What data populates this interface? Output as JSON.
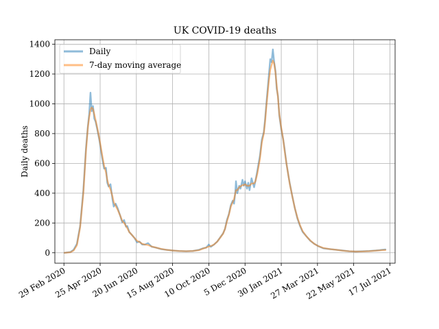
{
  "chart_data": {
    "type": "line",
    "title": "UK COVID-19 deaths",
    "xlabel": "",
    "ylabel": "Daily deaths",
    "x_range": [
      "2020-02-15",
      "2021-07-25"
    ],
    "ylim": [
      -70,
      1430
    ],
    "y_ticks": [
      0,
      200,
      400,
      600,
      800,
      1000,
      1200,
      1400
    ],
    "x_ticks": [
      {
        "date": "2020-02-29",
        "label": "29 Feb 2020"
      },
      {
        "date": "2020-04-25",
        "label": "25 Apr 2020"
      },
      {
        "date": "2020-06-20",
        "label": "20 Jun 2020"
      },
      {
        "date": "2020-08-15",
        "label": "15 Aug 2020"
      },
      {
        "date": "2020-10-10",
        "label": "10 Oct 2020"
      },
      {
        "date": "2020-12-05",
        "label": "5 Dec 2020"
      },
      {
        "date": "2021-01-30",
        "label": "30 Jan 2021"
      },
      {
        "date": "2021-03-27",
        "label": "27 Mar 2021"
      },
      {
        "date": "2021-05-22",
        "label": "22 May 2021"
      },
      {
        "date": "2021-07-17",
        "label": "17 Jul 2021"
      }
    ],
    "grid": true,
    "legend_position": "top-left",
    "series": [
      {
        "name": "Daily",
        "color": "#1f77b4",
        "points": [
          [
            "2020-03-01",
            0
          ],
          [
            "2020-03-10",
            5
          ],
          [
            "2020-03-15",
            20
          ],
          [
            "2020-03-20",
            60
          ],
          [
            "2020-03-25",
            180
          ],
          [
            "2020-03-30",
            420
          ],
          [
            "2020-04-03",
            700
          ],
          [
            "2020-04-06",
            850
          ],
          [
            "2020-04-08",
            930
          ],
          [
            "2020-04-10",
            1075
          ],
          [
            "2020-04-12",
            950
          ],
          [
            "2020-04-14",
            985
          ],
          [
            "2020-04-16",
            900
          ],
          [
            "2020-04-18",
            880
          ],
          [
            "2020-04-21",
            820
          ],
          [
            "2020-04-24",
            750
          ],
          [
            "2020-04-28",
            640
          ],
          [
            "2020-05-01",
            565
          ],
          [
            "2020-05-04",
            570
          ],
          [
            "2020-05-06",
            470
          ],
          [
            "2020-05-08",
            445
          ],
          [
            "2020-05-11",
            460
          ],
          [
            "2020-05-14",
            360
          ],
          [
            "2020-05-16",
            310
          ],
          [
            "2020-05-19",
            330
          ],
          [
            "2020-05-22",
            300
          ],
          [
            "2020-05-26",
            250
          ],
          [
            "2020-05-29",
            205
          ],
          [
            "2020-06-01",
            220
          ],
          [
            "2020-06-04",
            175
          ],
          [
            "2020-06-06",
            180
          ],
          [
            "2020-06-09",
            140
          ],
          [
            "2020-06-13",
            120
          ],
          [
            "2020-06-17",
            100
          ],
          [
            "2020-06-21",
            70
          ],
          [
            "2020-06-25",
            75
          ],
          [
            "2020-06-29",
            55
          ],
          [
            "2020-07-03",
            55
          ],
          [
            "2020-07-08",
            65
          ],
          [
            "2020-07-14",
            40
          ],
          [
            "2020-07-20",
            35
          ],
          [
            "2020-07-28",
            25
          ],
          [
            "2020-08-05",
            20
          ],
          [
            "2020-08-15",
            15
          ],
          [
            "2020-08-25",
            12
          ],
          [
            "2020-09-05",
            10
          ],
          [
            "2020-09-15",
            12
          ],
          [
            "2020-09-25",
            20
          ],
          [
            "2020-10-01",
            30
          ],
          [
            "2020-10-06",
            35
          ],
          [
            "2020-10-10",
            55
          ],
          [
            "2020-10-13",
            40
          ],
          [
            "2020-10-18",
            55
          ],
          [
            "2020-10-23",
            75
          ],
          [
            "2020-10-27",
            100
          ],
          [
            "2020-11-01",
            130
          ],
          [
            "2020-11-04",
            160
          ],
          [
            "2020-11-07",
            220
          ],
          [
            "2020-11-10",
            260
          ],
          [
            "2020-11-13",
            320
          ],
          [
            "2020-11-16",
            350
          ],
          [
            "2020-11-18",
            330
          ],
          [
            "2020-11-20",
            410
          ],
          [
            "2020-11-21",
            480
          ],
          [
            "2020-11-23",
            400
          ],
          [
            "2020-11-26",
            450
          ],
          [
            "2020-11-28",
            430
          ],
          [
            "2020-12-01",
            490
          ],
          [
            "2020-12-03",
            450
          ],
          [
            "2020-12-05",
            480
          ],
          [
            "2020-12-08",
            430
          ],
          [
            "2020-12-10",
            470
          ],
          [
            "2020-12-12",
            420
          ],
          [
            "2020-12-15",
            500
          ],
          [
            "2020-12-17",
            470
          ],
          [
            "2020-12-19",
            440
          ],
          [
            "2020-12-21",
            480
          ],
          [
            "2020-12-24",
            550
          ],
          [
            "2020-12-28",
            650
          ],
          [
            "2020-12-31",
            760
          ],
          [
            "2021-01-03",
            810
          ],
          [
            "2021-01-05",
            900
          ],
          [
            "2021-01-07",
            1000
          ],
          [
            "2021-01-09",
            1100
          ],
          [
            "2021-01-11",
            1200
          ],
          [
            "2021-01-13",
            1300
          ],
          [
            "2021-01-15",
            1280
          ],
          [
            "2021-01-17",
            1365
          ],
          [
            "2021-01-19",
            1280
          ],
          [
            "2021-01-21",
            1220
          ],
          [
            "2021-01-23",
            1100
          ],
          [
            "2021-01-25",
            1050
          ],
          [
            "2021-01-27",
            920
          ],
          [
            "2021-01-30",
            830
          ],
          [
            "2021-02-02",
            760
          ],
          [
            "2021-02-04",
            700
          ],
          [
            "2021-02-07",
            600
          ],
          [
            "2021-02-10",
            520
          ],
          [
            "2021-02-12",
            470
          ],
          [
            "2021-02-16",
            380
          ],
          [
            "2021-02-20",
            300
          ],
          [
            "2021-02-24",
            230
          ],
          [
            "2021-02-28",
            180
          ],
          [
            "2021-03-04",
            140
          ],
          [
            "2021-03-10",
            110
          ],
          [
            "2021-03-16",
            80
          ],
          [
            "2021-03-22",
            60
          ],
          [
            "2021-03-28",
            45
          ],
          [
            "2021-04-05",
            30
          ],
          [
            "2021-04-15",
            25
          ],
          [
            "2021-04-25",
            20
          ],
          [
            "2021-05-05",
            15
          ],
          [
            "2021-05-15",
            10
          ],
          [
            "2021-05-25",
            8
          ],
          [
            "2021-06-05",
            10
          ],
          [
            "2021-06-15",
            12
          ],
          [
            "2021-06-25",
            15
          ],
          [
            "2021-07-01",
            18
          ],
          [
            "2021-07-05",
            20
          ],
          [
            "2021-07-10",
            22
          ]
        ]
      },
      {
        "name": "7-day moving average",
        "color": "#ff7f0e",
        "points": [
          [
            "2020-03-01",
            0
          ],
          [
            "2020-03-10",
            3
          ],
          [
            "2020-03-15",
            15
          ],
          [
            "2020-03-20",
            50
          ],
          [
            "2020-03-25",
            170
          ],
          [
            "2020-03-30",
            400
          ],
          [
            "2020-04-03",
            680
          ],
          [
            "2020-04-06",
            840
          ],
          [
            "2020-04-08",
            910
          ],
          [
            "2020-04-10",
            960
          ],
          [
            "2020-04-12",
            975
          ],
          [
            "2020-04-14",
            965
          ],
          [
            "2020-04-16",
            930
          ],
          [
            "2020-04-18",
            890
          ],
          [
            "2020-04-21",
            830
          ],
          [
            "2020-04-24",
            760
          ],
          [
            "2020-04-28",
            660
          ],
          [
            "2020-05-01",
            585
          ],
          [
            "2020-05-04",
            540
          ],
          [
            "2020-05-06",
            490
          ],
          [
            "2020-05-08",
            455
          ],
          [
            "2020-05-11",
            425
          ],
          [
            "2020-05-14",
            380
          ],
          [
            "2020-05-16",
            340
          ],
          [
            "2020-05-19",
            315
          ],
          [
            "2020-05-22",
            290
          ],
          [
            "2020-05-26",
            250
          ],
          [
            "2020-05-29",
            215
          ],
          [
            "2020-06-01",
            200
          ],
          [
            "2020-06-04",
            180
          ],
          [
            "2020-06-06",
            165
          ],
          [
            "2020-06-09",
            140
          ],
          [
            "2020-06-13",
            120
          ],
          [
            "2020-06-17",
            100
          ],
          [
            "2020-06-21",
            80
          ],
          [
            "2020-06-25",
            72
          ],
          [
            "2020-06-29",
            60
          ],
          [
            "2020-07-03",
            55
          ],
          [
            "2020-07-08",
            52
          ],
          [
            "2020-07-14",
            42
          ],
          [
            "2020-07-20",
            35
          ],
          [
            "2020-07-28",
            26
          ],
          [
            "2020-08-05",
            20
          ],
          [
            "2020-08-15",
            15
          ],
          [
            "2020-08-25",
            12
          ],
          [
            "2020-09-05",
            10
          ],
          [
            "2020-09-15",
            12
          ],
          [
            "2020-09-25",
            18
          ],
          [
            "2020-10-01",
            28
          ],
          [
            "2020-10-06",
            35
          ],
          [
            "2020-10-10",
            42
          ],
          [
            "2020-10-13",
            45
          ],
          [
            "2020-10-18",
            55
          ],
          [
            "2020-10-23",
            75
          ],
          [
            "2020-10-27",
            98
          ],
          [
            "2020-11-01",
            128
          ],
          [
            "2020-11-04",
            160
          ],
          [
            "2020-11-07",
            210
          ],
          [
            "2020-11-10",
            255
          ],
          [
            "2020-11-13",
            310
          ],
          [
            "2020-11-16",
            340
          ],
          [
            "2020-11-18",
            360
          ],
          [
            "2020-11-20",
            400
          ],
          [
            "2020-11-21",
            420
          ],
          [
            "2020-11-23",
            420
          ],
          [
            "2020-11-26",
            440
          ],
          [
            "2020-11-28",
            445
          ],
          [
            "2020-12-01",
            455
          ],
          [
            "2020-12-03",
            455
          ],
          [
            "2020-12-05",
            460
          ],
          [
            "2020-12-08",
            450
          ],
          [
            "2020-12-10",
            450
          ],
          [
            "2020-12-12",
            450
          ],
          [
            "2020-12-15",
            465
          ],
          [
            "2020-12-17",
            465
          ],
          [
            "2020-12-19",
            465
          ],
          [
            "2020-12-21",
            480
          ],
          [
            "2020-12-24",
            530
          ],
          [
            "2020-12-28",
            630
          ],
          [
            "2020-12-31",
            740
          ],
          [
            "2021-01-03",
            800
          ],
          [
            "2021-01-05",
            880
          ],
          [
            "2021-01-07",
            980
          ],
          [
            "2021-01-09",
            1070
          ],
          [
            "2021-01-11",
            1160
          ],
          [
            "2021-01-13",
            1230
          ],
          [
            "2021-01-15",
            1260
          ],
          [
            "2021-01-17",
            1290
          ],
          [
            "2021-01-19",
            1270
          ],
          [
            "2021-01-21",
            1210
          ],
          [
            "2021-01-23",
            1120
          ],
          [
            "2021-01-25",
            1040
          ],
          [
            "2021-01-27",
            930
          ],
          [
            "2021-01-30",
            840
          ],
          [
            "2021-02-02",
            760
          ],
          [
            "2021-02-04",
            690
          ],
          [
            "2021-02-07",
            600
          ],
          [
            "2021-02-10",
            520
          ],
          [
            "2021-02-12",
            465
          ],
          [
            "2021-02-16",
            380
          ],
          [
            "2021-02-20",
            300
          ],
          [
            "2021-02-24",
            235
          ],
          [
            "2021-02-28",
            185
          ],
          [
            "2021-03-04",
            145
          ],
          [
            "2021-03-10",
            110
          ],
          [
            "2021-03-16",
            82
          ],
          [
            "2021-03-22",
            60
          ],
          [
            "2021-03-28",
            45
          ],
          [
            "2021-04-05",
            32
          ],
          [
            "2021-04-15",
            25
          ],
          [
            "2021-04-25",
            20
          ],
          [
            "2021-05-05",
            14
          ],
          [
            "2021-05-15",
            10
          ],
          [
            "2021-05-25",
            8
          ],
          [
            "2021-06-05",
            9
          ],
          [
            "2021-06-15",
            11
          ],
          [
            "2021-06-25",
            14
          ],
          [
            "2021-07-01",
            16
          ],
          [
            "2021-07-05",
            18
          ],
          [
            "2021-07-10",
            19
          ]
        ]
      }
    ]
  }
}
